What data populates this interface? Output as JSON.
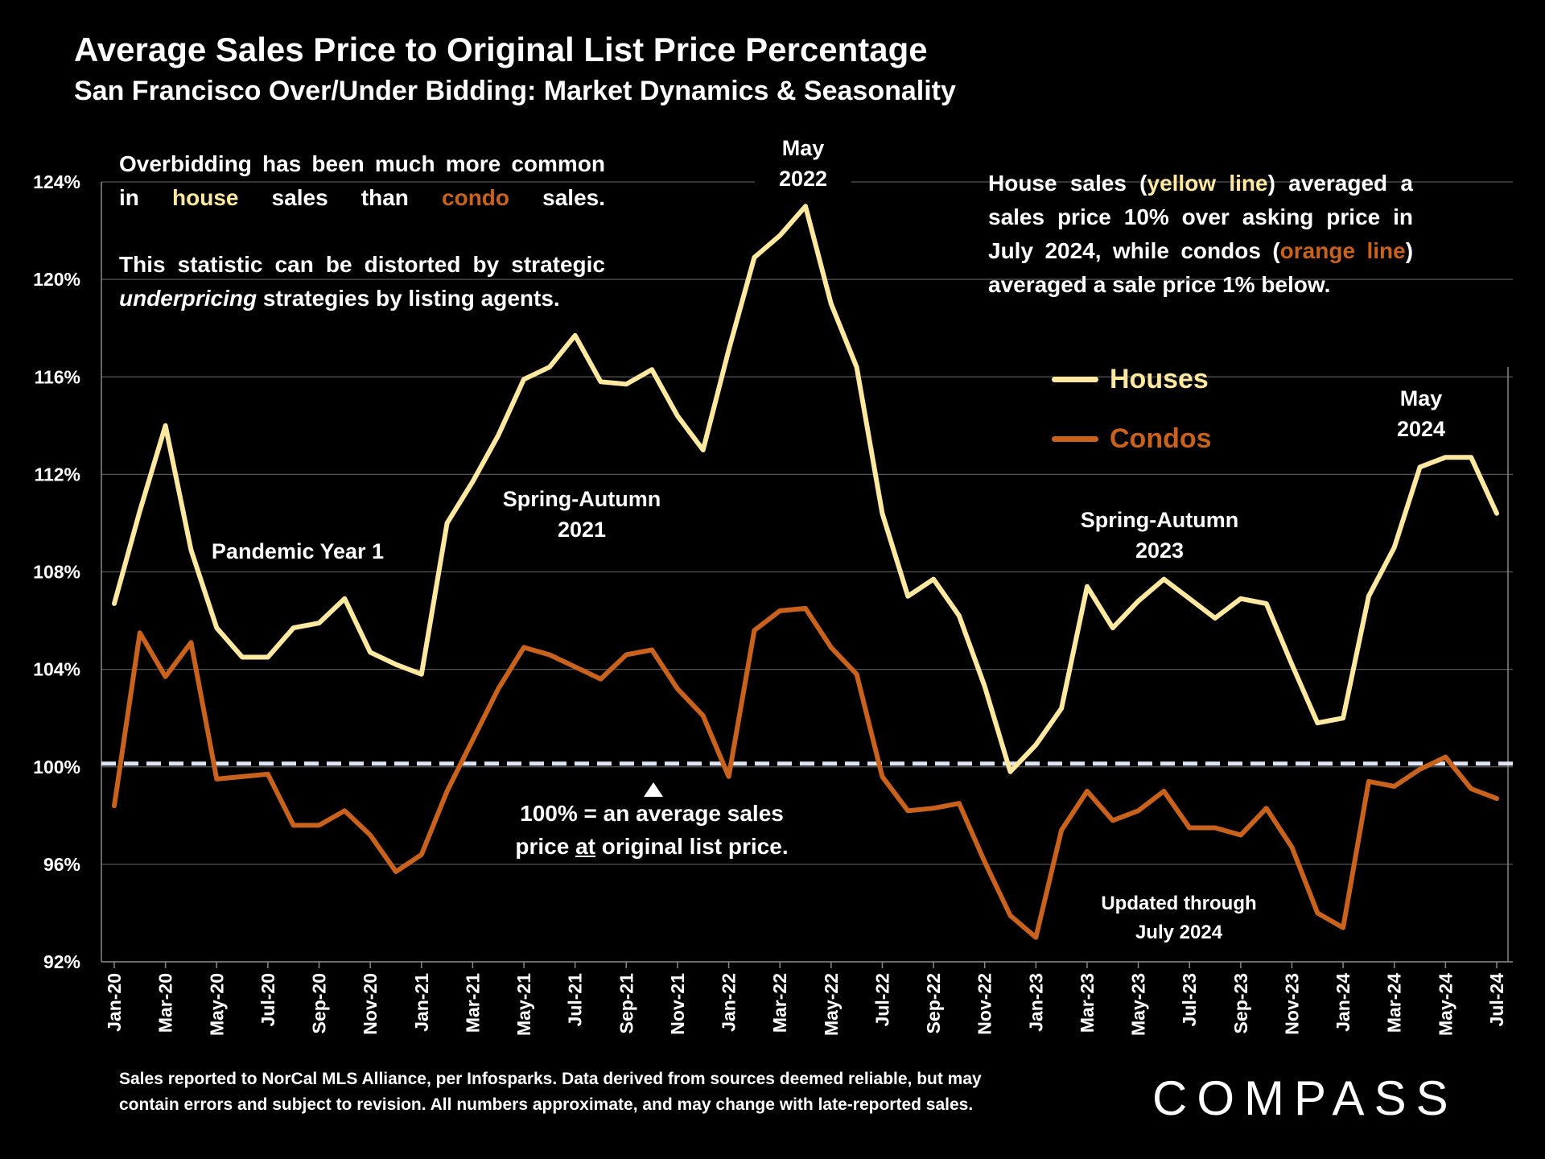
{
  "title": "Average Sales Price to Original List Price Percentage",
  "subtitle": "San Francisco Over/Under Bidding: Market Dynamics & Seasonality",
  "notes": {
    "left_line1_pre": "Overbidding has been much more common in ",
    "left_line1_house": "house",
    "left_line1_mid": " sales than ",
    "left_line1_condo": "condo",
    "left_line1_post": " sales.",
    "left_line2_pre": "This statistic can be distorted by strategic ",
    "left_line2_em": "underpricing",
    "left_line2_post": " strategies by listing agents.",
    "right_pre": "House sales (",
    "right_yellow": "yellow line",
    "right_mid": ") averaged a sales price 10% over asking price in July 2024, while condos (",
    "right_orange": "orange line",
    "right_post": ") averaged a sale price 1% below."
  },
  "callouts": {
    "may2022_a": "May",
    "may2022_b": "2022",
    "may2024_a": "May",
    "may2024_b": "2024",
    "pandemic": "Pandemic Year 1",
    "spring2021_a": "Spring-Autumn",
    "spring2021_b": "2021",
    "spring2023_a": "Spring-Autumn",
    "spring2023_b": "2023",
    "baseline_a": "100% = an average sales",
    "baseline_b_pre": "price ",
    "baseline_b_u": "at",
    "baseline_b_post": " original list price.",
    "updated_a": "Updated through",
    "updated_b": "July 2024"
  },
  "footer": {
    "line1": "Sales reported to NorCal MLS Alliance, per Infosparks. Data derived from sources deemed reliable, but may",
    "line2": "contain errors and subject to revision. All numbers approximate, and may change with late-reported sales."
  },
  "logo": "COMPASS",
  "colors": {
    "houses": "#ffe8a0",
    "condos": "#c8621c",
    "baseline": "#dde4f5",
    "grid": "#555555"
  },
  "chart_data": {
    "type": "line",
    "ylim": [
      92,
      124
    ],
    "yticks": [
      "92%",
      "96%",
      "100%",
      "104%",
      "108%",
      "112%",
      "116%",
      "120%",
      "124%"
    ],
    "ytick_values": [
      92,
      96,
      100,
      104,
      108,
      112,
      116,
      120,
      124
    ],
    "x": [
      "Jan-20",
      "Feb-20",
      "Mar-20",
      "Apr-20",
      "May-20",
      "Jun-20",
      "Jul-20",
      "Aug-20",
      "Sep-20",
      "Oct-20",
      "Nov-20",
      "Dec-20",
      "Jan-21",
      "Feb-21",
      "Mar-21",
      "Apr-21",
      "May-21",
      "Jun-21",
      "Jul-21",
      "Aug-21",
      "Sep-21",
      "Oct-21",
      "Nov-21",
      "Dec-21",
      "Jan-22",
      "Feb-22",
      "Mar-22",
      "Apr-22",
      "May-22",
      "Jun-22",
      "Jul-22",
      "Aug-22",
      "Sep-22",
      "Oct-22",
      "Nov-22",
      "Dec-22",
      "Jan-23",
      "Feb-23",
      "Mar-23",
      "Apr-23",
      "May-23",
      "Jun-23",
      "Jul-23",
      "Aug-23",
      "Sep-23",
      "Oct-23",
      "Nov-23",
      "Dec-23",
      "Jan-24",
      "Feb-24",
      "Mar-24",
      "Apr-24",
      "May-24",
      "Jun-24",
      "Jul-24"
    ],
    "xtick_labels": [
      "Jan-20",
      "Mar-20",
      "May-20",
      "Jul-20",
      "Sep-20",
      "Nov-20",
      "Jan-21",
      "Mar-21",
      "May-21",
      "Jul-21",
      "Sep-21",
      "Nov-21",
      "Jan-22",
      "Mar-22",
      "May-22",
      "Jul-22",
      "Sep-22",
      "Nov-22",
      "Jan-23",
      "Mar-23",
      "May-23",
      "Jul-23",
      "Sep-23",
      "Nov-23",
      "Jan-24",
      "Mar-24",
      "May-24",
      "Jul-24"
    ],
    "reference_line": 100,
    "legend_position": "right",
    "series": [
      {
        "name": "Houses",
        "values": [
          106.7,
          110.5,
          114.0,
          108.9,
          105.7,
          104.5,
          104.5,
          105.7,
          105.9,
          106.9,
          104.7,
          104.2,
          103.8,
          110.0,
          111.7,
          113.6,
          115.9,
          116.4,
          117.7,
          115.8,
          115.7,
          116.3,
          114.4,
          113.0,
          117.1,
          120.9,
          121.8,
          123.0,
          119.0,
          116.4,
          110.4,
          107.0,
          107.7,
          106.2,
          103.3,
          99.8,
          100.9,
          102.4,
          107.4,
          105.7,
          106.8,
          107.7,
          106.9,
          106.1,
          106.9,
          106.7,
          104.2,
          101.8,
          102.0,
          107.0,
          109.0,
          112.3,
          112.7,
          112.7,
          110.4
        ]
      },
      {
        "name": "Condos",
        "values": [
          98.4,
          105.5,
          103.7,
          105.1,
          99.5,
          99.6,
          99.7,
          97.6,
          97.6,
          98.2,
          97.2,
          95.7,
          96.4,
          99.0,
          101.1,
          103.2,
          104.9,
          104.6,
          104.1,
          103.6,
          104.6,
          104.8,
          103.2,
          102.1,
          99.6,
          105.6,
          106.4,
          106.5,
          104.9,
          103.8,
          99.6,
          98.2,
          98.3,
          98.5,
          96.1,
          93.9,
          93.0,
          97.4,
          99.0,
          97.8,
          98.2,
          99.0,
          97.5,
          97.5,
          97.2,
          98.3,
          96.7,
          94.0,
          93.4,
          99.4,
          99.2,
          99.9,
          100.4,
          99.1,
          98.7
        ]
      }
    ],
    "legend": [
      "Houses",
      "Condos"
    ]
  }
}
